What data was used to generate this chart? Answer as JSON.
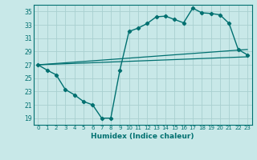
{
  "xlabel": "Humidex (Indice chaleur)",
  "bg_color": "#c8e8e8",
  "grid_color": "#a8d0d0",
  "line_color": "#007070",
  "xlim": [
    -0.5,
    23.5
  ],
  "ylim": [
    18,
    36
  ],
  "yticks": [
    19,
    21,
    23,
    25,
    27,
    29,
    31,
    33,
    35
  ],
  "xticks": [
    0,
    1,
    2,
    3,
    4,
    5,
    6,
    7,
    8,
    9,
    10,
    11,
    12,
    13,
    14,
    15,
    16,
    17,
    18,
    19,
    20,
    21,
    22,
    23
  ],
  "line1_x": [
    0,
    1,
    2,
    3,
    4,
    5,
    6,
    7,
    8,
    9,
    10,
    11,
    12,
    13,
    14,
    15,
    16,
    17,
    18,
    19,
    20,
    21,
    22,
    23
  ],
  "line1_y": [
    27.0,
    26.2,
    25.5,
    23.3,
    22.5,
    21.5,
    21.0,
    19.0,
    19.0,
    26.2,
    32.0,
    32.5,
    33.2,
    34.2,
    34.3,
    33.8,
    33.3,
    35.5,
    34.8,
    34.7,
    34.5,
    33.2,
    29.3,
    28.5
  ],
  "line2_x": [
    0,
    23
  ],
  "line2_y": [
    27.0,
    29.3
  ],
  "line3_x": [
    0,
    23
  ],
  "line3_y": [
    27.0,
    28.2
  ]
}
